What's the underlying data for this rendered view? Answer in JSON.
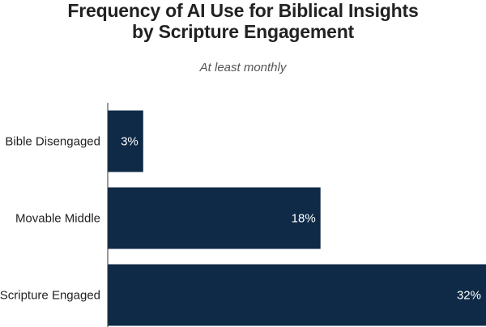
{
  "chart_data": {
    "type": "bar",
    "orientation": "horizontal",
    "title": "Frequency of AI Use for Biblical Insights by Scripture Engagement",
    "title_lines": [
      "Frequency of AI Use for Biblical Insights",
      "by Scripture Engagement"
    ],
    "subtitle": "At least monthly",
    "categories": [
      "Bible Disengaged",
      "Movable Middle",
      "Scripture Engaged"
    ],
    "values": [
      3,
      18,
      32
    ],
    "value_labels": [
      "3%",
      "18%",
      "32%"
    ],
    "xlabel": "",
    "ylabel": "",
    "xlim": [
      0,
      32
    ],
    "grid": false,
    "legend": "none",
    "bar_color": "#0f2a47",
    "axis_color": "#333333"
  }
}
